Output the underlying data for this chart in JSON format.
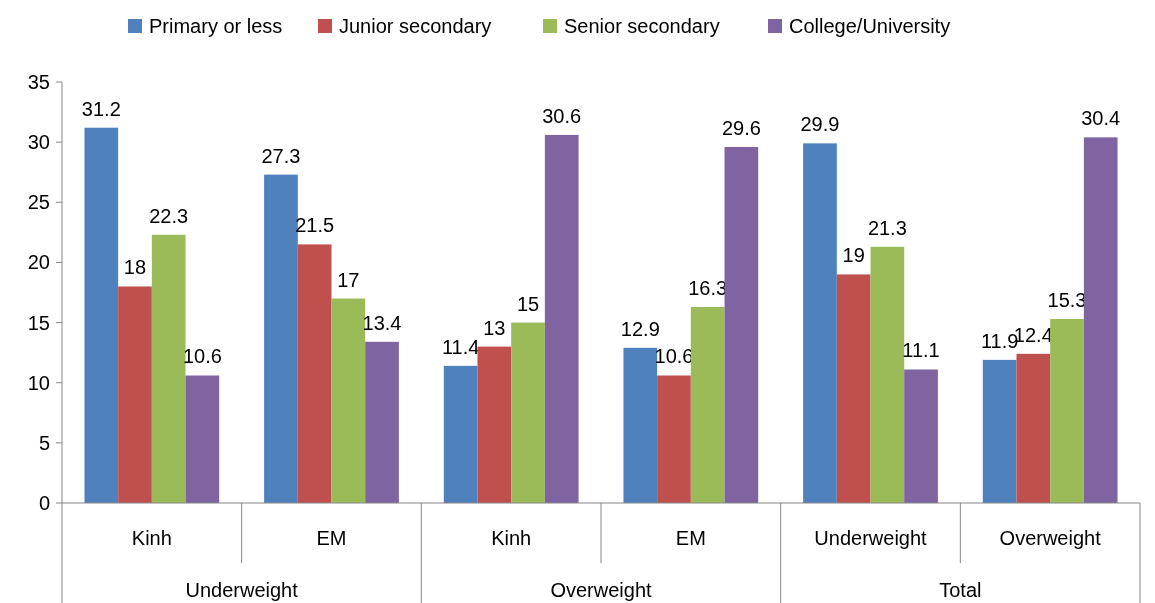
{
  "chart_data": {
    "type": "bar",
    "categories": [
      "Kinh",
      "EM",
      "Kinh",
      "EM",
      "Underweight",
      "Overweight"
    ],
    "series": [
      {
        "name": "Primary or less",
        "color": "#4f81bd",
        "values": [
          31.2,
          27.3,
          11.4,
          12.9,
          29.9,
          11.9
        ]
      },
      {
        "name": "Junior secondary",
        "color": "#c0504d",
        "values": [
          18,
          21.5,
          13,
          10.6,
          19,
          12.4
        ]
      },
      {
        "name": "Senior secondary",
        "color": "#9bbb59",
        "values": [
          22.3,
          17,
          15,
          16.3,
          21.3,
          15.3
        ]
      },
      {
        "name": "College/University",
        "color": "#8064a2",
        "values": [
          10.6,
          13.4,
          30.6,
          29.6,
          11.1,
          30.4
        ]
      }
    ],
    "annotations": [
      "Underweight",
      "Overweight",
      "Total"
    ],
    "ylim": [
      0,
      35
    ],
    "yticks": [
      0,
      5,
      10,
      15,
      20,
      25,
      30,
      35
    ],
    "data_labels": true,
    "legend": "top",
    "grid": false
  }
}
